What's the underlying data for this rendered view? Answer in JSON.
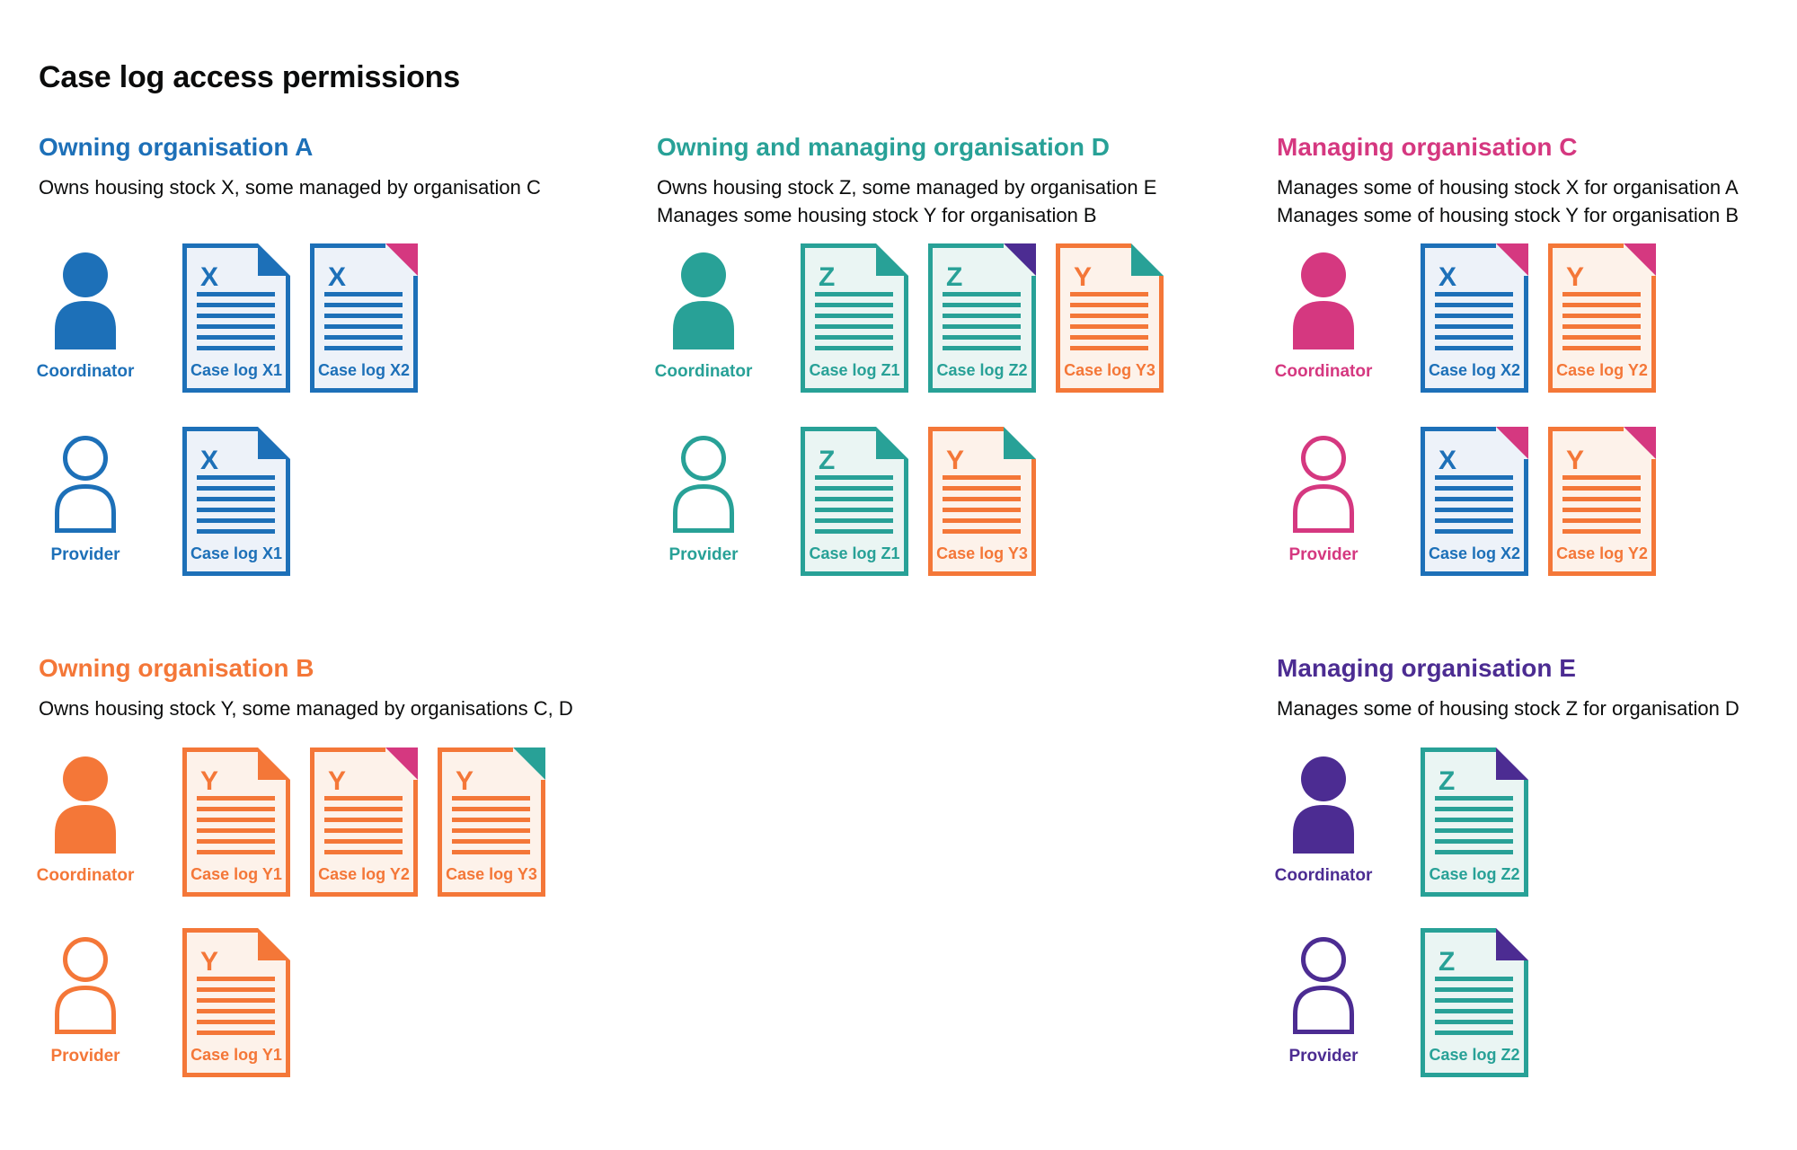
{
  "page_title": "Case log access permissions",
  "colors": {
    "blue": "#1d70b8",
    "teal": "#28a197",
    "pink": "#d53880",
    "orange": "#f47738",
    "purple": "#4c2c92",
    "text": "#0b0c0c",
    "background": "#ffffff",
    "blue_fill": "#edf2f9",
    "teal_fill": "#eaf5f3",
    "orange_fill": "#fdf2ea"
  },
  "labels": {
    "coordinator": "Coordinator",
    "provider": "Provider"
  },
  "sections": [
    {
      "id": "org-a",
      "title": "Owning organisation A",
      "color": "blue",
      "col": 0,
      "row": 0,
      "subtitles": [
        "Owns housing stock X, some managed by organisation C"
      ],
      "rows": [
        {
          "role": "coordinator",
          "person": "filled",
          "docs": [
            {
              "letter": "X",
              "label": "Case log X1",
              "color": "blue",
              "fold_color": "blue",
              "fold_style": "flap"
            },
            {
              "letter": "X",
              "label": "Case log X2",
              "color": "blue",
              "fold_color": "pink",
              "fold_style": "corner"
            }
          ]
        },
        {
          "role": "provider",
          "person": "outline",
          "docs": [
            {
              "letter": "X",
              "label": "Case log X1",
              "color": "blue",
              "fold_color": "blue",
              "fold_style": "flap"
            }
          ]
        }
      ]
    },
    {
      "id": "org-d",
      "title": "Owning and managing organisation D",
      "color": "teal",
      "col": 1,
      "row": 0,
      "subtitles": [
        "Owns housing stock Z, some managed by organisation E",
        "Manages some housing stock Y for organisation B"
      ],
      "rows": [
        {
          "role": "coordinator",
          "person": "filled",
          "docs": [
            {
              "letter": "Z",
              "label": "Case log Z1",
              "color": "teal",
              "fold_color": "teal",
              "fold_style": "flap"
            },
            {
              "letter": "Z",
              "label": "Case log Z2",
              "color": "teal",
              "fold_color": "purple",
              "fold_style": "corner"
            },
            {
              "letter": "Y",
              "label": "Case log Y3",
              "color": "orange",
              "fold_color": "teal",
              "fold_style": "flap"
            }
          ]
        },
        {
          "role": "provider",
          "person": "outline",
          "docs": [
            {
              "letter": "Z",
              "label": "Case log Z1",
              "color": "teal",
              "fold_color": "teal",
              "fold_style": "flap"
            },
            {
              "letter": "Y",
              "label": "Case log Y3",
              "color": "orange",
              "fold_color": "teal",
              "fold_style": "flap"
            }
          ]
        }
      ]
    },
    {
      "id": "org-c",
      "title": "Managing organisation C",
      "color": "pink",
      "col": 2,
      "row": 0,
      "subtitles": [
        "Manages some of housing stock X for organisation A",
        "Manages some of housing stock Y for organisation B"
      ],
      "rows": [
        {
          "role": "coordinator",
          "person": "filled",
          "docs": [
            {
              "letter": "X",
              "label": "Case log X2",
              "color": "blue",
              "fold_color": "pink",
              "fold_style": "corner"
            },
            {
              "letter": "Y",
              "label": "Case log Y2",
              "color": "orange",
              "fold_color": "pink",
              "fold_style": "corner"
            }
          ]
        },
        {
          "role": "provider",
          "person": "outline",
          "docs": [
            {
              "letter": "X",
              "label": "Case log X2",
              "color": "blue",
              "fold_color": "pink",
              "fold_style": "corner"
            },
            {
              "letter": "Y",
              "label": "Case log Y2",
              "color": "orange",
              "fold_color": "pink",
              "fold_style": "corner"
            }
          ]
        }
      ]
    },
    {
      "id": "org-b",
      "title": "Owning organisation B",
      "color": "orange",
      "col": 0,
      "row": 1,
      "subtitles": [
        "Owns housing stock Y, some managed by organisations C, D"
      ],
      "rows": [
        {
          "role": "coordinator",
          "person": "filled",
          "docs": [
            {
              "letter": "Y",
              "label": "Case log Y1",
              "color": "orange",
              "fold_color": "orange",
              "fold_style": "flap"
            },
            {
              "letter": "Y",
              "label": "Case log Y2",
              "color": "orange",
              "fold_color": "pink",
              "fold_style": "corner"
            },
            {
              "letter": "Y",
              "label": "Case log Y3",
              "color": "orange",
              "fold_color": "teal",
              "fold_style": "corner"
            }
          ]
        },
        {
          "role": "provider",
          "person": "outline",
          "docs": [
            {
              "letter": "Y",
              "label": "Case log Y1",
              "color": "orange",
              "fold_color": "orange",
              "fold_style": "flap"
            }
          ]
        }
      ]
    },
    {
      "id": "org-e",
      "title": "Managing organisation E",
      "color": "purple",
      "col": 2,
      "row": 1,
      "subtitles": [
        "Manages some of housing stock Z for organisation D"
      ],
      "rows": [
        {
          "role": "coordinator",
          "person": "filled",
          "docs": [
            {
              "letter": "Z",
              "label": "Case log Z2",
              "color": "teal",
              "fold_color": "purple",
              "fold_style": "flap"
            }
          ]
        },
        {
          "role": "provider",
          "person": "outline",
          "docs": [
            {
              "letter": "Z",
              "label": "Case log Z2",
              "color": "teal",
              "fold_color": "purple",
              "fold_style": "flap"
            }
          ]
        }
      ]
    }
  ]
}
